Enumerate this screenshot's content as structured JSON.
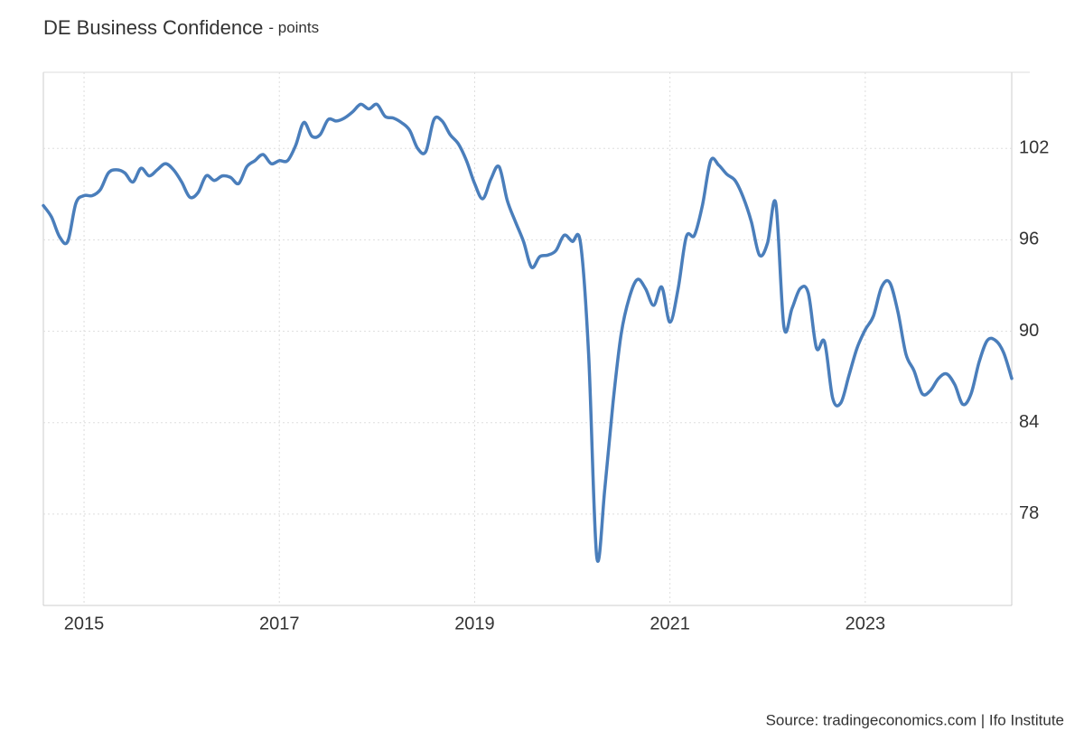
{
  "chart_data": {
    "type": "line",
    "title": "DE Business Confidence",
    "subtitle": "- points",
    "source": "Source: tradingeconomics.com | Ifo Institute",
    "x": [
      "2014-08",
      "2014-09",
      "2014-10",
      "2014-11",
      "2014-12",
      "2015-01",
      "2015-02",
      "2015-03",
      "2015-04",
      "2015-05",
      "2015-06",
      "2015-07",
      "2015-08",
      "2015-09",
      "2015-10",
      "2015-11",
      "2015-12",
      "2016-01",
      "2016-02",
      "2016-03",
      "2016-04",
      "2016-05",
      "2016-06",
      "2016-07",
      "2016-08",
      "2016-09",
      "2016-10",
      "2016-11",
      "2016-12",
      "2017-01",
      "2017-02",
      "2017-03",
      "2017-04",
      "2017-05",
      "2017-06",
      "2017-07",
      "2017-08",
      "2017-09",
      "2017-10",
      "2017-11",
      "2017-12",
      "2018-01",
      "2018-02",
      "2018-03",
      "2018-04",
      "2018-05",
      "2018-06",
      "2018-07",
      "2018-08",
      "2018-09",
      "2018-10",
      "2018-11",
      "2018-12",
      "2019-01",
      "2019-02",
      "2019-03",
      "2019-04",
      "2019-05",
      "2019-06",
      "2019-07",
      "2019-08",
      "2019-09",
      "2019-10",
      "2019-11",
      "2019-12",
      "2020-01",
      "2020-02",
      "2020-03",
      "2020-04",
      "2020-05",
      "2020-06",
      "2020-07",
      "2020-08",
      "2020-09",
      "2020-10",
      "2020-11",
      "2020-12",
      "2021-01",
      "2021-02",
      "2021-03",
      "2021-04",
      "2021-05",
      "2021-06",
      "2021-07",
      "2021-08",
      "2021-09",
      "2021-10",
      "2021-11",
      "2021-12",
      "2022-01",
      "2022-02",
      "2022-03",
      "2022-04",
      "2022-05",
      "2022-06",
      "2022-07",
      "2022-08",
      "2022-09",
      "2022-10",
      "2022-11",
      "2022-12",
      "2023-01",
      "2023-02",
      "2023-03",
      "2023-04",
      "2023-05",
      "2023-06",
      "2023-07",
      "2023-08",
      "2023-09",
      "2023-10",
      "2023-11",
      "2023-12",
      "2024-01",
      "2024-02",
      "2024-03",
      "2024-04",
      "2024-05",
      "2024-06",
      "2024-07"
    ],
    "series": [
      {
        "name": "DE Business Confidence",
        "color": "#4a7ebb",
        "values": [
          98.25,
          97.5,
          96.2,
          95.9,
          98.4,
          98.9,
          98.9,
          99.3,
          100.4,
          100.6,
          100.4,
          99.8,
          100.7,
          100.2,
          100.6,
          101.0,
          100.6,
          99.8,
          98.8,
          99.1,
          100.2,
          99.9,
          100.2,
          100.1,
          99.7,
          100.8,
          101.2,
          101.6,
          101.0,
          101.2,
          101.2,
          102.2,
          103.7,
          102.8,
          102.9,
          103.9,
          103.8,
          104.0,
          104.4,
          104.9,
          104.6,
          104.9,
          104.1,
          104.0,
          103.7,
          103.2,
          102.0,
          101.8,
          103.9,
          103.8,
          102.9,
          102.3,
          101.2,
          99.7,
          98.7,
          100.0,
          100.8,
          98.6,
          97.2,
          95.9,
          94.2,
          94.9,
          95.0,
          95.3,
          96.3,
          95.9,
          95.8,
          88.5,
          75.2,
          79.7,
          85.3,
          89.8,
          92.2,
          93.4,
          92.8,
          91.7,
          92.9,
          90.6,
          92.8,
          96.2,
          96.3,
          98.3,
          101.2,
          100.9,
          100.3,
          99.9,
          98.8,
          97.2,
          95.0,
          95.8,
          98.4,
          90.3,
          91.5,
          92.8,
          92.5,
          88.9,
          89.3,
          85.6,
          85.3,
          87.1,
          88.9,
          90.1,
          91.0,
          92.9,
          93.2,
          91.3,
          88.5,
          87.4,
          85.9,
          86.1,
          86.9,
          87.2,
          86.5,
          85.2,
          85.9,
          88.0,
          89.4,
          89.4,
          88.6,
          86.9
        ]
      }
    ],
    "xlim": [
      "2014-08",
      "2024-07"
    ],
    "xticks": [
      {
        "value": "2015-01",
        "label": "2015"
      },
      {
        "value": "2017-01",
        "label": "2017"
      },
      {
        "value": "2019-01",
        "label": "2019"
      },
      {
        "value": "2021-01",
        "label": "2021"
      },
      {
        "value": "2023-01",
        "label": "2023"
      }
    ],
    "ylim": [
      72,
      107
    ],
    "yticks": [
      78,
      84,
      90,
      96,
      102
    ],
    "grid": true
  }
}
